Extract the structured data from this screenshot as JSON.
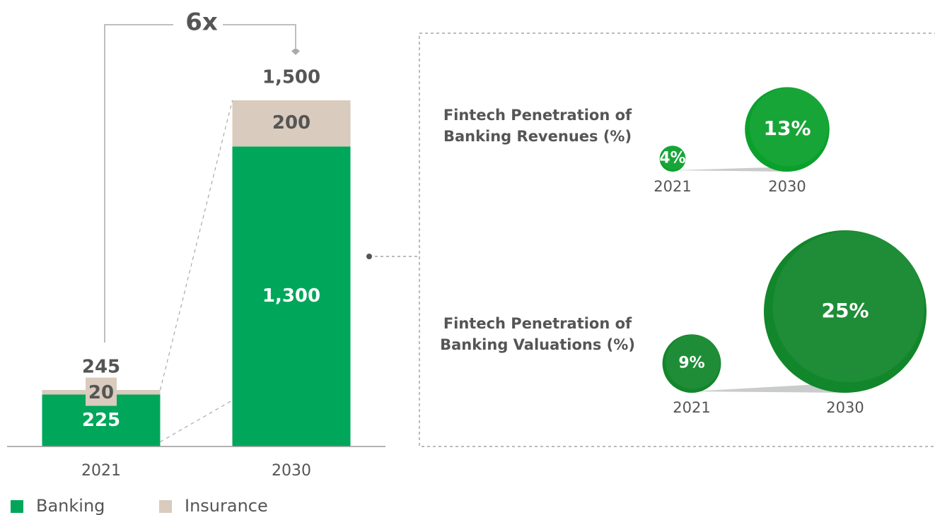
{
  "chart_data": [
    {
      "type": "stacked-bar",
      "categories": [
        "2021",
        "2030"
      ],
      "series": [
        {
          "name": "Banking",
          "color": "#00a65a",
          "values": [
            225,
            1300
          ],
          "value_labels": [
            "225",
            "1,300"
          ]
        },
        {
          "name": "Insurance",
          "color": "#d9cbbd",
          "values": [
            20,
            200
          ]
        }
      ],
      "totals": [
        245,
        1500
      ],
      "total_labels": [
        "245",
        "1,500"
      ],
      "annotation": "6x",
      "ylim": [
        0,
        1500
      ]
    },
    {
      "type": "bubble",
      "title": "Fintech Penetration of Banking Revenues (%)",
      "categories": [
        "2021",
        "2030"
      ],
      "values": [
        4,
        13
      ],
      "value_labels": [
        "4%",
        "13%"
      ],
      "color": "#0aa02c"
    },
    {
      "type": "bubble",
      "title": "Fintech Penetration of Banking Valuations (%)",
      "categories": [
        "2021",
        "2030"
      ],
      "values": [
        9,
        25
      ],
      "value_labels": [
        "9%",
        "25%"
      ],
      "color": "#12862b"
    }
  ]
}
